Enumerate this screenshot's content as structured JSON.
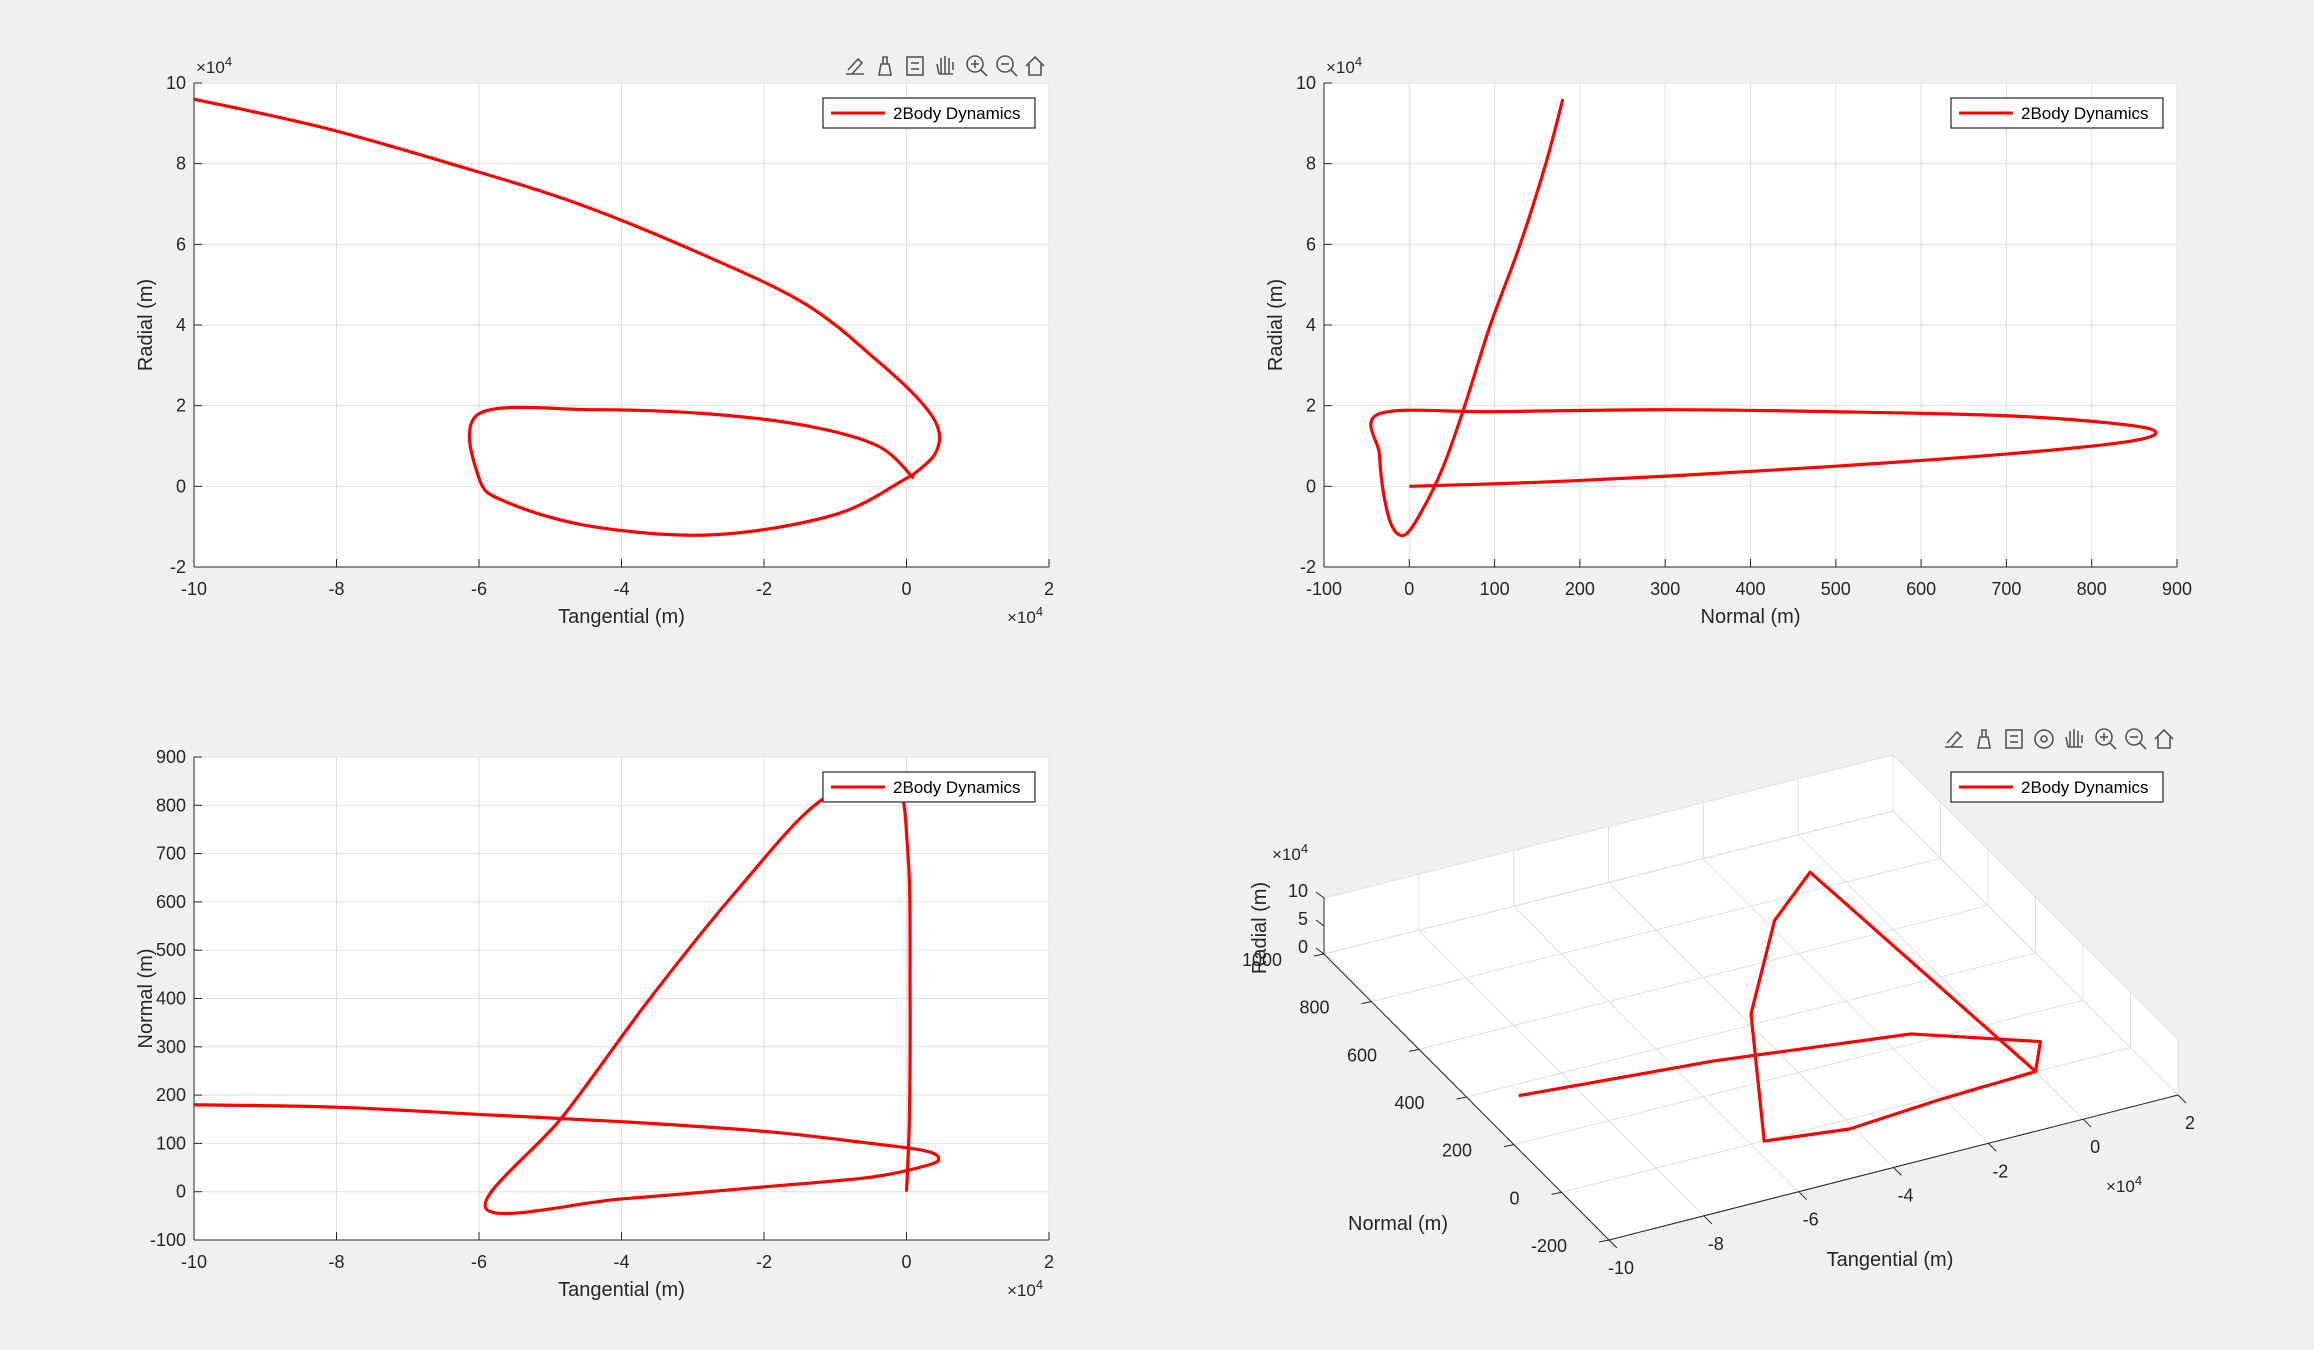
{
  "colors": {
    "series": "#ff0000",
    "axes_bg": "#ffffff",
    "fig_bg": "#f0f0f0",
    "grid": "#dfdfdf"
  },
  "legend_label": "2Body Dynamics",
  "toolbar_2d": [
    "brush-icon",
    "data-tip-icon",
    "legend-icon",
    "pan-icon",
    "zoom-in-icon",
    "zoom-out-icon",
    "home-icon"
  ],
  "toolbar_3d": [
    "brush-icon",
    "data-tip-icon",
    "legend-icon",
    "rotate-icon",
    "pan-icon",
    "zoom-in-icon",
    "zoom-out-icon",
    "home-icon"
  ],
  "chart_data": [
    {
      "type": "line",
      "xlabel": "Tangential (m)",
      "ylabel": "Radial (m)",
      "xlim": [
        -100000,
        20000
      ],
      "ylim": [
        -20000,
        100000
      ],
      "xticks": [
        -100000,
        -80000,
        -60000,
        -40000,
        -20000,
        0,
        20000
      ],
      "xtick_labels": [
        "-10",
        "-8",
        "-6",
        "-4",
        "-2",
        "0",
        "2"
      ],
      "yticks": [
        -20000,
        0,
        20000,
        40000,
        60000,
        80000,
        100000
      ],
      "ytick_labels": [
        "-2",
        "0",
        "2",
        "4",
        "6",
        "8",
        "10"
      ],
      "x_exponent": "×10",
      "x_exponent_power": "4",
      "y_exponent": "×10",
      "y_exponent_power": "4",
      "grid": true,
      "legend": "top-right",
      "series": [
        {
          "name": "2Body Dynamics",
          "x": [
            -100000,
            -82000,
            -64000,
            -46000,
            -28000,
            -14000,
            -4000,
            2000,
            4500,
            4000,
            1000,
            0,
            -10000,
            -27000,
            -44000,
            -56000,
            -60000,
            -60000,
            -44000,
            -28000,
            -14000,
            -4000,
            1000
          ],
          "y": [
            96000,
            89000,
            80000,
            70000,
            57000,
            45000,
            31000,
            21000,
            14000,
            8000,
            3000,
            2000,
            -7000,
            -12000,
            -10000,
            -4000,
            2000,
            18000,
            19000,
            18000,
            15000,
            10000,
            2000
          ]
        }
      ]
    },
    {
      "type": "line",
      "xlabel": "Normal (m)",
      "ylabel": "Radial (m)",
      "xlim": [
        -100,
        900
      ],
      "ylim": [
        -20000,
        100000
      ],
      "xticks": [
        -100,
        0,
        100,
        200,
        300,
        400,
        500,
        600,
        700,
        800,
        900
      ],
      "xtick_labels": [
        "-100",
        "0",
        "100",
        "200",
        "300",
        "400",
        "500",
        "600",
        "700",
        "800",
        "900"
      ],
      "yticks": [
        -20000,
        0,
        20000,
        40000,
        60000,
        80000,
        100000
      ],
      "ytick_labels": [
        "-2",
        "0",
        "2",
        "4",
        "6",
        "8",
        "10"
      ],
      "y_exponent": "×10",
      "y_exponent_power": "4",
      "grid": true,
      "legend": "top-right",
      "series": [
        {
          "name": "2Body Dynamics",
          "x": [
            180,
            160,
            130,
            95,
            65,
            40,
            15,
            -5,
            -20,
            -30,
            -35,
            -35,
            100,
            300,
            500,
            700,
            830,
            875,
            840,
            700,
            500,
            300,
            150,
            0
          ],
          "y": [
            96000,
            80000,
            60000,
            40000,
            20000,
            5000,
            -6000,
            -12000,
            -10000,
            -2000,
            8000,
            18000,
            18500,
            19000,
            18500,
            17500,
            15500,
            13500,
            11000,
            8000,
            5000,
            2500,
            1000,
            0
          ]
        }
      ]
    },
    {
      "type": "line",
      "xlabel": "Tangential (m)",
      "ylabel": "Normal (m)",
      "xlim": [
        -100000,
        20000
      ],
      "ylim": [
        -100,
        900
      ],
      "xticks": [
        -100000,
        -80000,
        -60000,
        -40000,
        -20000,
        0,
        20000
      ],
      "xtick_labels": [
        "-10",
        "-8",
        "-6",
        "-4",
        "-2",
        "0",
        "2"
      ],
      "yticks": [
        -100,
        0,
        100,
        200,
        300,
        400,
        500,
        600,
        700,
        800,
        900
      ],
      "ytick_labels": [
        "-100",
        "0",
        "100",
        "200",
        "300",
        "400",
        "500",
        "600",
        "700",
        "800",
        "900"
      ],
      "x_exponent": "×10",
      "x_exponent_power": "4",
      "grid": true,
      "legend": "top-right",
      "series": [
        {
          "name": "2Body Dynamics",
          "x": [
            -100000,
            -80000,
            -60000,
            -40000,
            -20000,
            -5000,
            2500,
            4500,
            3000,
            -5000,
            -20000,
            -40000,
            -59000,
            -48000,
            -36000,
            -24000,
            -12000,
            -2000,
            200,
            500,
            400,
            0
          ],
          "y": [
            180,
            175,
            160,
            145,
            125,
            100,
            85,
            70,
            55,
            30,
            10,
            -15,
            -35,
            160,
            400,
            620,
            810,
            850,
            700,
            400,
            150,
            0
          ]
        }
      ]
    },
    {
      "type": "line",
      "xlabel": "Tangential (m)",
      "ylabel": "Radial (m)",
      "zlabel": "Normal (m)",
      "xlim": [
        -100000,
        20000
      ],
      "ylim": [
        -200,
        1000
      ],
      "zlim": [
        0,
        100000
      ],
      "xtick_labels": [
        "-10",
        "-8",
        "-6",
        "-4",
        "-2",
        "0",
        "2"
      ],
      "ytick_labels": [
        "-200",
        "0",
        "200",
        "400",
        "600",
        "800",
        "1000"
      ],
      "ztick_labels": [
        "0",
        "5",
        "10"
      ],
      "x_exponent": "×10",
      "x_exponent_power": "4",
      "z_exponent": "×10",
      "z_exponent_power": "4",
      "grid": true,
      "legend": "top-right",
      "series": [
        {
          "name": "2Body Dynamics",
          "x": [
            -100000,
            -60000,
            -20000,
            4500,
            0,
            -20000,
            -40000,
            -59000,
            -40000,
            -20000,
            -5000,
            0
          ],
          "y": [
            180,
            160,
            125,
            70,
            0,
            10,
            -15,
            -35,
            400,
            700,
            850,
            0
          ],
          "z": [
            96000,
            80000,
            57000,
            14000,
            0,
            -12000,
            -10000,
            18000,
            19000,
            15000,
            5000,
            0
          ]
        }
      ]
    }
  ]
}
